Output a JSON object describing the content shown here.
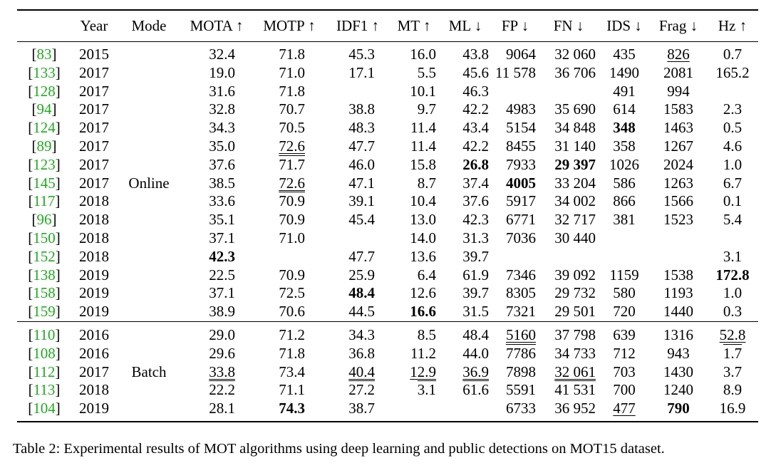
{
  "table": {
    "columns": [
      "",
      "Year",
      "Mode",
      "MOTA ↑",
      "MOTP ↑",
      "IDF1 ↑",
      "MT ↑",
      "ML ↓",
      "FP ↓",
      "FN ↓",
      "IDS ↓",
      "Frag ↓",
      "Hz ↑"
    ],
    "online_mode_label": "Online",
    "batch_mode_label": "Batch",
    "online": [
      {
        "ref": "83",
        "year": "2015",
        "mota": "32.4",
        "motp": "71.8",
        "idf1": "45.3",
        "mt": "16.0",
        "ml": "43.8",
        "fp": "9064",
        "fn": "32 060",
        "ids": "435",
        "frag": "826",
        "hz": "0.7"
      },
      {
        "ref": "133",
        "year": "2017",
        "mota": "19.0",
        "motp": "71.0",
        "idf1": "17.1",
        "mt": "5.5",
        "ml": "45.6",
        "fp": "11 578",
        "fn": "36 706",
        "ids": "1490",
        "frag": "2081",
        "hz": "165.2"
      },
      {
        "ref": "128",
        "year": "2017",
        "mota": "31.6",
        "motp": "71.8",
        "idf1": "",
        "mt": "10.1",
        "ml": "46.3",
        "fp": "",
        "fn": "",
        "ids": "491",
        "frag": "994",
        "hz": ""
      },
      {
        "ref": "94",
        "year": "2017",
        "mota": "32.8",
        "motp": "70.7",
        "idf1": "38.8",
        "mt": "9.7",
        "ml": "42.2",
        "fp": "4983",
        "fn": "35 690",
        "ids": "614",
        "frag": "1583",
        "hz": "2.3"
      },
      {
        "ref": "124",
        "year": "2017",
        "mota": "34.3",
        "motp": "70.5",
        "idf1": "48.3",
        "mt": "11.4",
        "ml": "43.4",
        "fp": "5154",
        "fn": "34 848",
        "ids": "348",
        "frag": "1463",
        "hz": "0.5"
      },
      {
        "ref": "89",
        "year": "2017",
        "mota": "35.0",
        "motp": "72.6",
        "idf1": "47.7",
        "mt": "11.4",
        "ml": "42.2",
        "fp": "8455",
        "fn": "31 140",
        "ids": "358",
        "frag": "1267",
        "hz": "4.6"
      },
      {
        "ref": "123",
        "year": "2017",
        "mota": "37.6",
        "motp": "71.7",
        "idf1": "46.0",
        "mt": "15.8",
        "ml": "26.8",
        "fp": "7933",
        "fn": "29 397",
        "ids": "1026",
        "frag": "2024",
        "hz": "1.0"
      },
      {
        "ref": "145",
        "year": "2017",
        "mota": "38.5",
        "motp": "72.6",
        "idf1": "47.1",
        "mt": "8.7",
        "ml": "37.4",
        "fp": "4005",
        "fn": "33 204",
        "ids": "586",
        "frag": "1263",
        "hz": "6.7"
      },
      {
        "ref": "117",
        "year": "2018",
        "mota": "33.6",
        "motp": "70.9",
        "idf1": "39.1",
        "mt": "10.4",
        "ml": "37.6",
        "fp": "5917",
        "fn": "34 002",
        "ids": "866",
        "frag": "1566",
        "hz": "0.1"
      },
      {
        "ref": "96",
        "year": "2018",
        "mota": "35.1",
        "motp": "70.9",
        "idf1": "45.4",
        "mt": "13.0",
        "ml": "42.3",
        "fp": "6771",
        "fn": "32 717",
        "ids": "381",
        "frag": "1523",
        "hz": "5.4"
      },
      {
        "ref": "150",
        "year": "2018",
        "mota": "37.1",
        "motp": "71.0",
        "idf1": "",
        "mt": "14.0",
        "ml": "31.3",
        "fp": "7036",
        "fn": "30 440",
        "ids": "",
        "frag": "",
        "hz": ""
      },
      {
        "ref": "152",
        "year": "2018",
        "mota": "42.3",
        "motp": "",
        "idf1": "47.7",
        "mt": "13.6",
        "ml": "39.7",
        "fp": "",
        "fn": "",
        "ids": "",
        "frag": "",
        "hz": "3.1"
      },
      {
        "ref": "138",
        "year": "2019",
        "mota": "22.5",
        "motp": "70.9",
        "idf1": "25.9",
        "mt": "6.4",
        "ml": "61.9",
        "fp": "7346",
        "fn": "39 092",
        "ids": "1159",
        "frag": "1538",
        "hz": "172.8"
      },
      {
        "ref": "158",
        "year": "2019",
        "mota": "37.1",
        "motp": "72.5",
        "idf1": "48.4",
        "mt": "12.6",
        "ml": "39.7",
        "fp": "8305",
        "fn": "29 732",
        "ids": "580",
        "frag": "1193",
        "hz": "1.0"
      },
      {
        "ref": "159",
        "year": "2019",
        "mota": "38.9",
        "motp": "70.6",
        "idf1": "44.5",
        "mt": "16.6",
        "ml": "31.5",
        "fp": "7321",
        "fn": "29 501",
        "ids": "720",
        "frag": "1440",
        "hz": "0.3"
      }
    ],
    "batch": [
      {
        "ref": "110",
        "year": "2016",
        "mota": "29.0",
        "motp": "71.2",
        "idf1": "34.3",
        "mt": "8.5",
        "ml": "48.4",
        "fp": "5160",
        "fn": "37 798",
        "ids": "639",
        "frag": "1316",
        "hz": "52.8"
      },
      {
        "ref": "108",
        "year": "2016",
        "mota": "29.6",
        "motp": "71.8",
        "idf1": "36.8",
        "mt": "11.2",
        "ml": "44.0",
        "fp": "7786",
        "fn": "34 733",
        "ids": "712",
        "frag": "943",
        "hz": "1.7"
      },
      {
        "ref": "112",
        "year": "2017",
        "mota": "33.8",
        "motp": "73.4",
        "idf1": "40.4",
        "mt": "12.9",
        "ml": "36.9",
        "fp": "7898",
        "fn": "32 061",
        "ids": "703",
        "frag": "1430",
        "hz": "3.7"
      },
      {
        "ref": "113",
        "year": "2018",
        "mota": "22.2",
        "motp": "71.1",
        "idf1": "27.2",
        "mt": "3.1",
        "ml": "61.6",
        "fp": "5591",
        "fn": "41 531",
        "ids": "700",
        "frag": "1240",
        "hz": "8.9"
      },
      {
        "ref": "104",
        "year": "2019",
        "mota": "28.1",
        "motp": "74.3",
        "idf1": "38.7",
        "mt": "",
        "ml": "",
        "fp": "6733",
        "fn": "36 952",
        "ids": "477",
        "frag": "790",
        "hz": "16.9"
      }
    ]
  },
  "caption": "Table 2: Experimental results of MOT algorithms using deep learning and public detections on MOT15 dataset.",
  "colors": {
    "citation": "#1faa1f",
    "text": "#000000"
  }
}
